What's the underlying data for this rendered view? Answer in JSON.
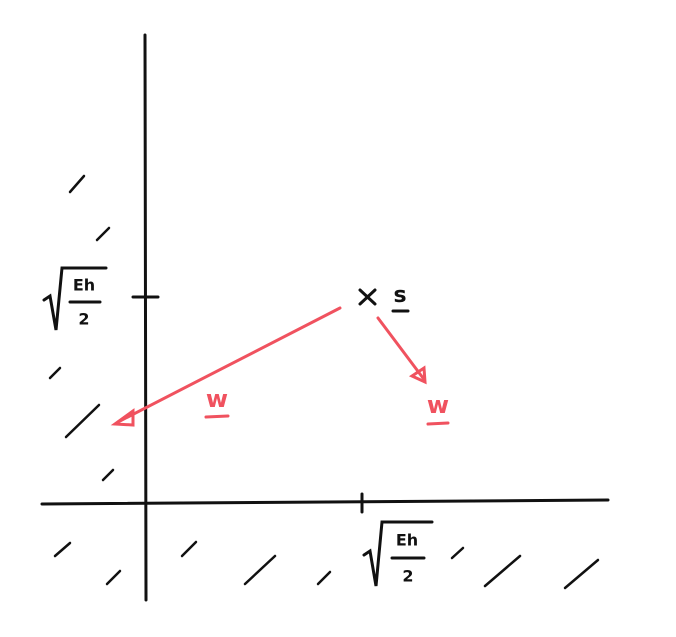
{
  "y_tick_label": {
    "numerator": "Eh",
    "denominator": "2"
  },
  "x_tick_label": {
    "numerator": "Eh",
    "denominator": "2"
  },
  "point": {
    "label": "s"
  },
  "vectors": [
    {
      "label": "w"
    },
    {
      "label": "w"
    }
  ]
}
